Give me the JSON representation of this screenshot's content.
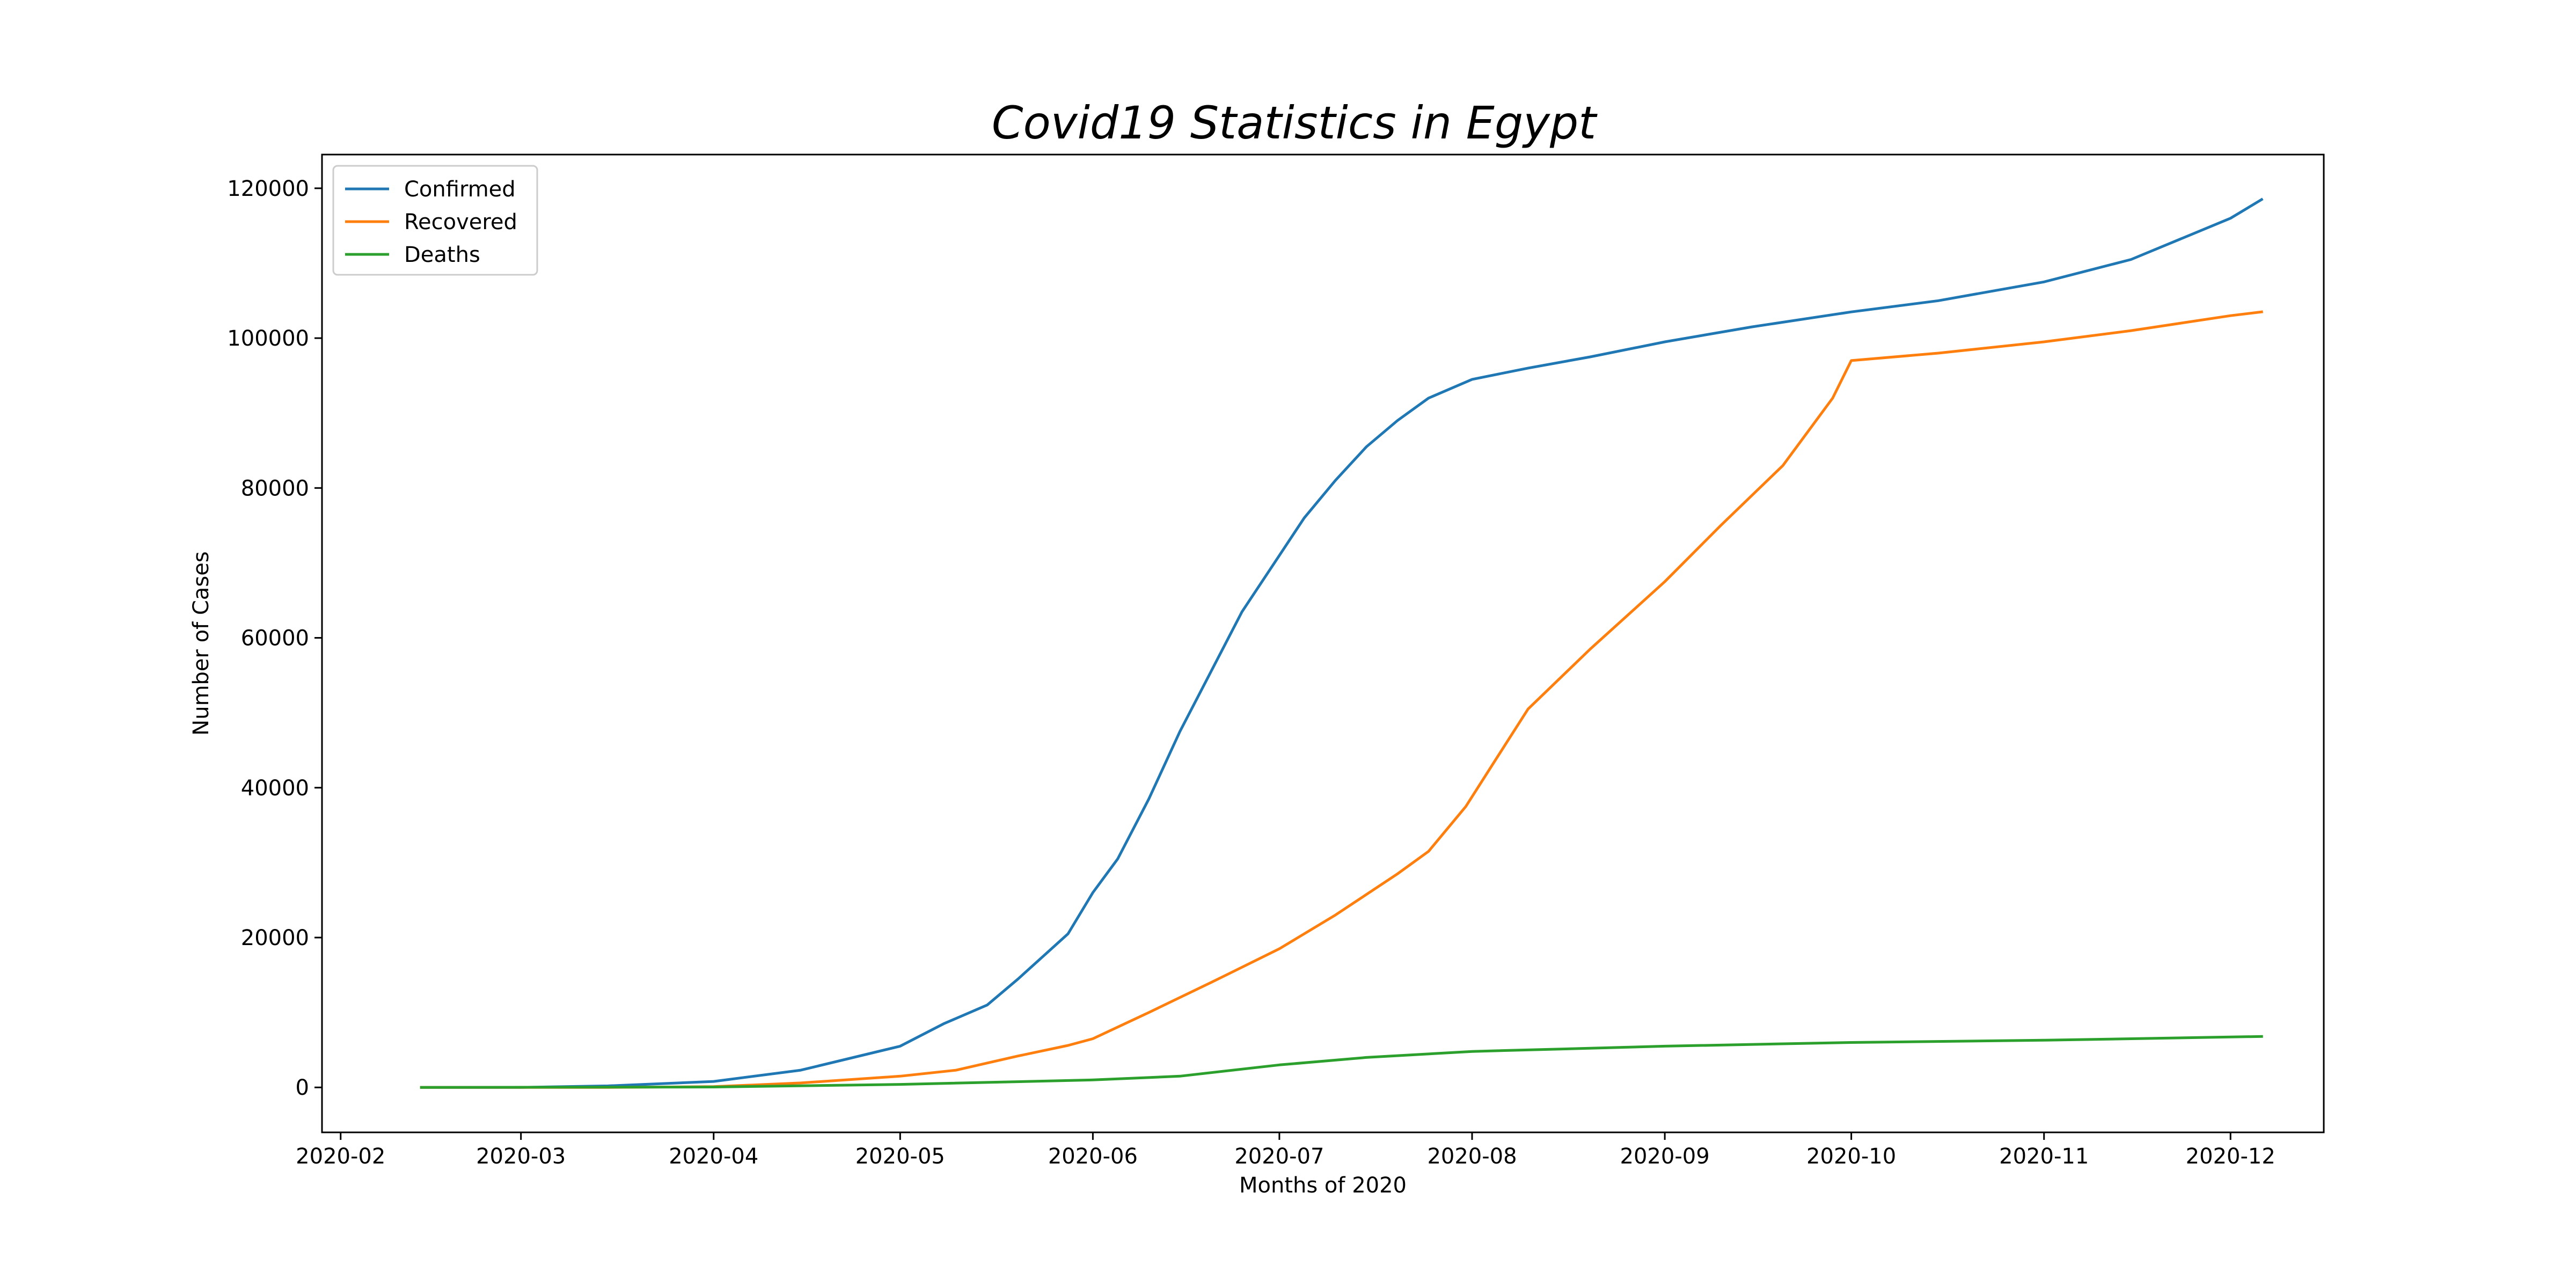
{
  "chart_data": {
    "type": "line",
    "title": "Covid19 Statistics in Egypt",
    "xlabel": "Months of 2020",
    "ylabel": "Number of Cases",
    "xlim": [
      "2020-01-29",
      "2020-12-16"
    ],
    "ylim": [
      -6000,
      124500
    ],
    "x_ticks": [
      "2020-02-01",
      "2020-03-01",
      "2020-04-01",
      "2020-05-01",
      "2020-06-01",
      "2020-07-01",
      "2020-08-01",
      "2020-09-01",
      "2020-10-01",
      "2020-11-01",
      "2020-12-01"
    ],
    "x_tick_labels": [
      "2020-02",
      "2020-03",
      "2020-04",
      "2020-05",
      "2020-06",
      "2020-07",
      "2020-08",
      "2020-09",
      "2020-10",
      "2020-11",
      "2020-12"
    ],
    "y_ticks": [
      0,
      20000,
      40000,
      60000,
      80000,
      100000,
      120000
    ],
    "y_tick_labels": [
      "0",
      "20000",
      "40000",
      "60000",
      "80000",
      "100000",
      "120000"
    ],
    "grid": false,
    "legend_position": "top-left",
    "series": [
      {
        "name": "Confirmed",
        "color": "#1f77b4",
        "x": [
          "2020-02-14",
          "2020-03-01",
          "2020-03-15",
          "2020-04-01",
          "2020-04-15",
          "2020-05-01",
          "2020-05-08",
          "2020-05-15",
          "2020-05-20",
          "2020-05-28",
          "2020-06-01",
          "2020-06-05",
          "2020-06-10",
          "2020-06-15",
          "2020-06-20",
          "2020-06-25",
          "2020-07-01",
          "2020-07-05",
          "2020-07-10",
          "2020-07-15",
          "2020-07-20",
          "2020-07-25",
          "2020-08-01",
          "2020-08-10",
          "2020-08-20",
          "2020-09-01",
          "2020-09-15",
          "2020-10-01",
          "2020-10-15",
          "2020-11-01",
          "2020-11-15",
          "2020-12-01",
          "2020-12-06"
        ],
        "values": [
          0,
          0,
          200,
          800,
          2300,
          5500,
          8500,
          11000,
          14500,
          20500,
          26000,
          30500,
          38500,
          47500,
          55500,
          63500,
          71000,
          76000,
          81000,
          85500,
          89000,
          92000,
          94500,
          96000,
          97500,
          99500,
          101500,
          103500,
          105000,
          107500,
          110500,
          116000,
          118500
        ]
      },
      {
        "name": "Recovered",
        "color": "#ff7f0e",
        "x": [
          "2020-02-14",
          "2020-03-15",
          "2020-04-01",
          "2020-04-15",
          "2020-05-01",
          "2020-05-10",
          "2020-05-20",
          "2020-05-28",
          "2020-06-01",
          "2020-06-10",
          "2020-06-20",
          "2020-07-01",
          "2020-07-10",
          "2020-07-20",
          "2020-07-25",
          "2020-07-31",
          "2020-08-05",
          "2020-08-10",
          "2020-08-20",
          "2020-09-01",
          "2020-09-10",
          "2020-09-20",
          "2020-09-28",
          "2020-10-01",
          "2020-10-15",
          "2020-11-01",
          "2020-11-15",
          "2020-12-01",
          "2020-12-06"
        ],
        "values": [
          0,
          0,
          100,
          600,
          1500,
          2300,
          4200,
          5600,
          6500,
          10000,
          14000,
          18500,
          23000,
          28500,
          31500,
          37500,
          44000,
          50500,
          58500,
          67500,
          75000,
          83000,
          92000,
          97000,
          98000,
          99500,
          101000,
          103000,
          103500
        ]
      },
      {
        "name": "Deaths",
        "color": "#2ca02c",
        "x": [
          "2020-02-14",
          "2020-04-01",
          "2020-05-01",
          "2020-06-01",
          "2020-06-15",
          "2020-07-01",
          "2020-07-15",
          "2020-08-01",
          "2020-09-01",
          "2020-10-01",
          "2020-11-01",
          "2020-12-06"
        ],
        "values": [
          0,
          50,
          400,
          1000,
          1500,
          3000,
          4000,
          4800,
          5500,
          6000,
          6300,
          6800
        ]
      }
    ]
  }
}
